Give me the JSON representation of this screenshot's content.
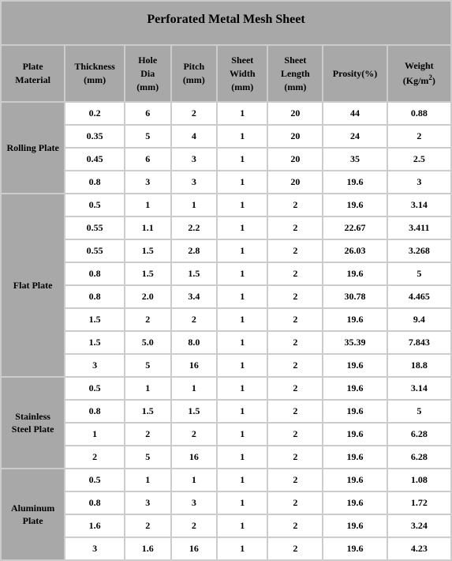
{
  "title": "Perforated Metal Mesh Sheet",
  "columns": [
    "Plate Material",
    "Thickness (mm)",
    "Hole Dia (mm)",
    "Pitch (mm)",
    "Sheet Width (mm)",
    "Sheet Length (mm)",
    "Prosity(%)",
    "Weight (Kg/m²)"
  ],
  "column_widths_pct": [
    14,
    13,
    10,
    10,
    11,
    12,
    14,
    14
  ],
  "groups": [
    {
      "material": "Rolling Plate",
      "rows": [
        [
          "0.2",
          "6",
          "2",
          "1",
          "20",
          "44",
          "0.88"
        ],
        [
          "0.35",
          "5",
          "4",
          "1",
          "20",
          "24",
          "2"
        ],
        [
          "0.45",
          "6",
          "3",
          "1",
          "20",
          "35",
          "2.5"
        ],
        [
          "0.8",
          "3",
          "3",
          "1",
          "20",
          "19.6",
          "3"
        ]
      ]
    },
    {
      "material": "Flat Plate",
      "rows": [
        [
          "0.5",
          "1",
          "1",
          "1",
          "2",
          "19.6",
          "3.14"
        ],
        [
          "0.55",
          "1.1",
          "2.2",
          "1",
          "2",
          "22.67",
          "3.411"
        ],
        [
          "0.55",
          "1.5",
          "2.8",
          "1",
          "2",
          "26.03",
          "3.268"
        ],
        [
          "0.8",
          "1.5",
          "1.5",
          "1",
          "2",
          "19.6",
          "5"
        ],
        [
          "0.8",
          "2.0",
          "3.4",
          "1",
          "2",
          "30.78",
          "4.465"
        ],
        [
          "1.5",
          "2",
          "2",
          "1",
          "2",
          "19.6",
          "9.4"
        ],
        [
          "1.5",
          "5.0",
          "8.0",
          "1",
          "2",
          "35.39",
          "7.843"
        ],
        [
          "3",
          "5",
          "16",
          "1",
          "2",
          "19.6",
          "18.8"
        ]
      ]
    },
    {
      "material": "Stainless Steel Plate",
      "rows": [
        [
          "0.5",
          "1",
          "1",
          "1",
          "2",
          "19.6",
          "3.14"
        ],
        [
          "0.8",
          "1.5",
          "1.5",
          "1",
          "2",
          "19.6",
          "5"
        ],
        [
          "1",
          "2",
          "2",
          "1",
          "2",
          "19.6",
          "6.28"
        ],
        [
          "2",
          "5",
          "16",
          "1",
          "2",
          "19.6",
          "6.28"
        ]
      ]
    },
    {
      "material": "Aluminum Plate",
      "rows": [
        [
          "0.5",
          "1",
          "1",
          "1",
          "2",
          "19.6",
          "1.08"
        ],
        [
          "0.8",
          "3",
          "3",
          "1",
          "2",
          "19.6",
          "1.72"
        ],
        [
          "1.6",
          "2",
          "2",
          "1",
          "2",
          "19.6",
          "3.24"
        ],
        [
          "3",
          "1.6",
          "16",
          "1",
          "2",
          "19.6",
          "4.23"
        ]
      ]
    }
  ],
  "colors": {
    "header_bg": "#a8a8a8",
    "cell_bg": "#ffffff",
    "border_bg": "#cccccc",
    "text": "#000000"
  },
  "typography": {
    "title_font_size_pt": 16,
    "header_font_size_pt": 12,
    "cell_font_size_pt": 12,
    "font_family": "Times New Roman"
  }
}
